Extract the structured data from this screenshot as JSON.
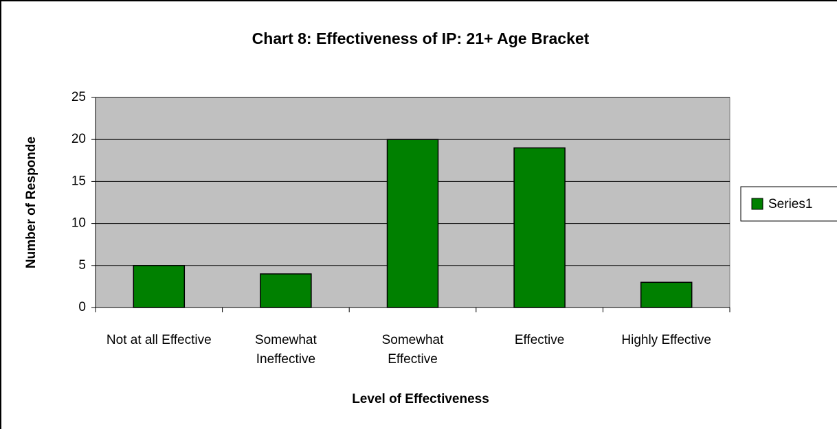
{
  "chart_data": {
    "type": "bar",
    "title": "Chart 8: Effectiveness of IP: 21+ Age Bracket",
    "x_label": "Level of Effectiveness",
    "y_label": "Number of Responde",
    "categories": [
      "Not at all Effective",
      "Somewhat Ineffective",
      "Somewhat Effective",
      "Effective",
      "Highly Effective"
    ],
    "series": [
      {
        "name": "Series1",
        "color": "#008000",
        "values": [
          5,
          4,
          20,
          19,
          3
        ]
      }
    ],
    "ylim": [
      0,
      25
    ],
    "yticks": [
      0,
      5,
      10,
      15,
      20,
      25
    ],
    "grid": true,
    "legend": "right"
  }
}
